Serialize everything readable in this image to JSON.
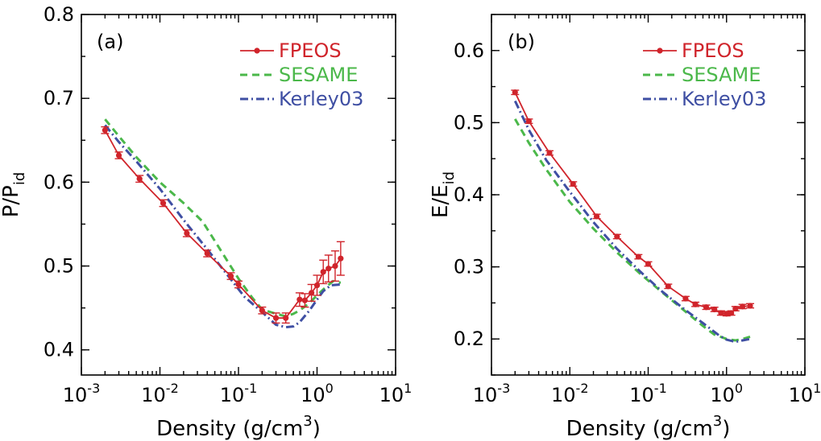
{
  "chart_data": [
    {
      "type": "line",
      "panel_label": "(a)",
      "xlabel": "Density (g/cm",
      "xlabel_sup": "3",
      "xlabel_close": ")",
      "ylabel_main": "P/P",
      "ylabel_sub": "id",
      "xscale": "log",
      "xlim": [
        0.001,
        10
      ],
      "ylim": [
        0.37,
        0.8
      ],
      "x_ticks": [
        {
          "value": 0.001,
          "base": "10",
          "exp": "-3"
        },
        {
          "value": 0.01,
          "base": "10",
          "exp": "-2"
        },
        {
          "value": 0.1,
          "base": "10",
          "exp": "-1"
        },
        {
          "value": 1,
          "base": "10",
          "exp": "0"
        },
        {
          "value": 10,
          "base": "10",
          "exp": "1"
        }
      ],
      "y_ticks": [
        {
          "value": 0.4,
          "label": "0.4"
        },
        {
          "value": 0.5,
          "label": "0.5"
        },
        {
          "value": 0.6,
          "label": "0.6"
        },
        {
          "value": 0.7,
          "label": "0.7"
        },
        {
          "value": 0.8,
          "label": "0.8"
        }
      ],
      "legend_position": "top-right",
      "series": [
        {
          "name": "FPEOS",
          "color": "#d0242b",
          "style": "solid-markers",
          "x": [
            0.002,
            0.003,
            0.0055,
            0.011,
            0.022,
            0.04,
            0.08,
            0.1,
            0.2,
            0.3,
            0.4,
            0.6,
            0.7,
            0.85,
            1.0,
            1.2,
            1.4,
            1.7,
            2.0
          ],
          "y": [
            0.662,
            0.632,
            0.604,
            0.575,
            0.539,
            0.515,
            0.488,
            0.478,
            0.447,
            0.438,
            0.438,
            0.46,
            0.459,
            0.468,
            0.477,
            0.493,
            0.497,
            0.5,
            0.509
          ],
          "err": [
            0.004,
            0.004,
            0.004,
            0.004,
            0.004,
            0.004,
            0.004,
            0.004,
            0.004,
            0.006,
            0.006,
            0.008,
            0.008,
            0.01,
            0.012,
            0.014,
            0.016,
            0.018,
            0.02
          ]
        },
        {
          "name": "SESAME",
          "color": "#4bb84a",
          "style": "dashed",
          "x": [
            0.002,
            0.003,
            0.005,
            0.01,
            0.02,
            0.035,
            0.06,
            0.1,
            0.15,
            0.2,
            0.3,
            0.4,
            0.5,
            0.6,
            0.8,
            1.0,
            1.3,
            1.6,
            2.0
          ],
          "y": [
            0.675,
            0.655,
            0.63,
            0.6,
            0.575,
            0.553,
            0.518,
            0.485,
            0.462,
            0.448,
            0.443,
            0.44,
            0.443,
            0.447,
            0.456,
            0.465,
            0.475,
            0.482,
            0.48
          ]
        },
        {
          "name": "Kerley03",
          "color": "#3f4fa3",
          "style": "dashdot",
          "x": [
            0.002,
            0.003,
            0.005,
            0.01,
            0.02,
            0.04,
            0.08,
            0.12,
            0.2,
            0.3,
            0.4,
            0.5,
            0.6,
            0.8,
            1.0,
            1.2,
            1.5,
            2.0
          ],
          "y": [
            0.668,
            0.648,
            0.625,
            0.592,
            0.555,
            0.52,
            0.484,
            0.463,
            0.445,
            0.43,
            0.427,
            0.428,
            0.433,
            0.447,
            0.46,
            0.47,
            0.477,
            0.478
          ]
        }
      ]
    },
    {
      "type": "line",
      "panel_label": "(b)",
      "xlabel": "Density (g/cm",
      "xlabel_sup": "3",
      "xlabel_close": ")",
      "ylabel_main": "E/E",
      "ylabel_sub": "id",
      "xscale": "log",
      "xlim": [
        0.001,
        10
      ],
      "ylim": [
        0.15,
        0.65
      ],
      "x_ticks": [
        {
          "value": 0.001,
          "base": "10",
          "exp": "-3"
        },
        {
          "value": 0.01,
          "base": "10",
          "exp": "-2"
        },
        {
          "value": 0.1,
          "base": "10",
          "exp": "-1"
        },
        {
          "value": 1,
          "base": "10",
          "exp": "0"
        },
        {
          "value": 10,
          "base": "10",
          "exp": "1"
        }
      ],
      "y_ticks": [
        {
          "value": 0.2,
          "label": "0.2"
        },
        {
          "value": 0.3,
          "label": "0.3"
        },
        {
          "value": 0.4,
          "label": "0.4"
        },
        {
          "value": 0.5,
          "label": "0.5"
        },
        {
          "value": 0.6,
          "label": "0.6"
        }
      ],
      "legend_position": "top-right",
      "series": [
        {
          "name": "FPEOS",
          "color": "#d0242b",
          "style": "solid-markers",
          "x": [
            0.002,
            0.003,
            0.0055,
            0.011,
            0.022,
            0.04,
            0.075,
            0.1,
            0.18,
            0.3,
            0.4,
            0.55,
            0.7,
            0.85,
            1.0,
            1.15,
            1.3,
            1.6,
            2.0
          ],
          "y": [
            0.542,
            0.502,
            0.458,
            0.415,
            0.37,
            0.342,
            0.314,
            0.304,
            0.273,
            0.256,
            0.248,
            0.244,
            0.241,
            0.236,
            0.235,
            0.236,
            0.242,
            0.245,
            0.246
          ]
        },
        {
          "name": "SESAME",
          "color": "#4bb84a",
          "style": "dashed",
          "x": [
            0.002,
            0.003,
            0.005,
            0.01,
            0.02,
            0.04,
            0.08,
            0.15,
            0.3,
            0.5,
            0.7,
            1.0,
            1.3,
            1.6,
            2.0
          ],
          "y": [
            0.505,
            0.472,
            0.435,
            0.39,
            0.353,
            0.32,
            0.29,
            0.265,
            0.238,
            0.218,
            0.206,
            0.2,
            0.198,
            0.2,
            0.203
          ]
        },
        {
          "name": "Kerley03",
          "color": "#3f4fa3",
          "style": "dashdot",
          "x": [
            0.002,
            0.003,
            0.005,
            0.01,
            0.02,
            0.04,
            0.08,
            0.15,
            0.3,
            0.5,
            0.8,
            1.0,
            1.3,
            1.6,
            2.0
          ],
          "y": [
            0.53,
            0.49,
            0.448,
            0.404,
            0.362,
            0.325,
            0.293,
            0.266,
            0.24,
            0.222,
            0.205,
            0.199,
            0.196,
            0.198,
            0.2
          ]
        }
      ]
    }
  ]
}
